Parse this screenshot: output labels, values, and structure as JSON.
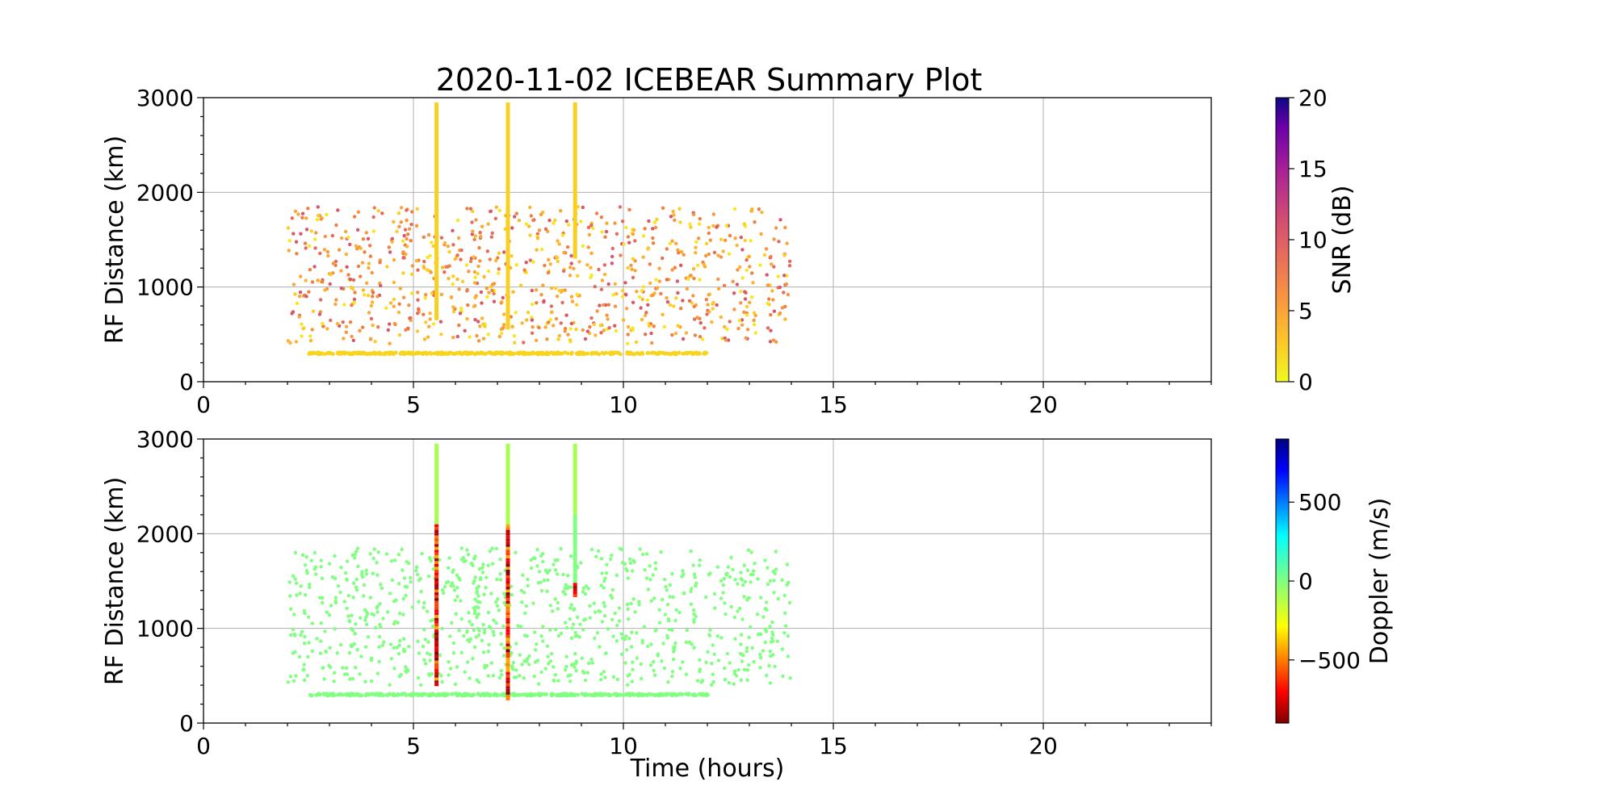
{
  "figure": {
    "title": "2020-11-02 ICEBEAR Summary Plot"
  },
  "chart_data": [
    {
      "type": "scatter",
      "panel": "snr",
      "title": "2020-11-02 ICEBEAR Summary Plot",
      "xlabel": "",
      "ylabel": "RF Distance (km)",
      "xlim": [
        0,
        24
      ],
      "ylim": [
        0,
        3000
      ],
      "x_ticks": [
        0,
        5,
        10,
        15,
        20
      ],
      "y_ticks": [
        0,
        1000,
        2000,
        3000
      ],
      "grid": true,
      "colorbar": {
        "label": "SNR (dB)",
        "range": [
          0,
          20
        ],
        "ticks": [
          0,
          5,
          10,
          15,
          20
        ],
        "colormap": "plasma_r"
      },
      "data_time_range": [
        2.0,
        14.0
      ],
      "ground_scatter_distance_km": 300,
      "vertical_streaks": [
        {
          "x": 5.55,
          "y_range": [
            650,
            2950
          ]
        },
        {
          "x": 7.25,
          "y_range": [
            550,
            2950
          ]
        },
        {
          "x": 8.85,
          "y_range": [
            1300,
            2950
          ]
        }
      ],
      "scatter_cloud_y_range": [
        400,
        1850
      ]
    },
    {
      "type": "scatter",
      "panel": "doppler",
      "xlabel": "Time (hours)",
      "ylabel": "RF Distance (km)",
      "xlim": [
        0,
        24
      ],
      "ylim": [
        0,
        3000
      ],
      "x_ticks": [
        0,
        5,
        10,
        15,
        20
      ],
      "y_ticks": [
        0,
        1000,
        2000,
        3000
      ],
      "grid": true,
      "colorbar": {
        "label": "Doppler (m/s)",
        "range": [
          -900,
          900
        ],
        "ticks": [
          -500,
          0,
          500
        ],
        "colormap": "jet_r"
      },
      "data_time_range": [
        2.0,
        14.0
      ],
      "ground_scatter_distance_km": 300,
      "vertical_streaks": [
        {
          "x": 5.55,
          "y_range": [
            400,
            2950
          ]
        },
        {
          "x": 7.25,
          "y_range": [
            250,
            2950
          ]
        },
        {
          "x": 8.85,
          "y_range": [
            1350,
            2950
          ]
        }
      ],
      "scatter_cloud_y_range": [
        400,
        1850
      ]
    }
  ],
  "colors": {
    "snr_low": "#f8e621",
    "snr_mid": "#f0893a",
    "snr_high": "#c43f76",
    "doppler_zero": "#80ff80",
    "grid": "#b0b0b0"
  }
}
